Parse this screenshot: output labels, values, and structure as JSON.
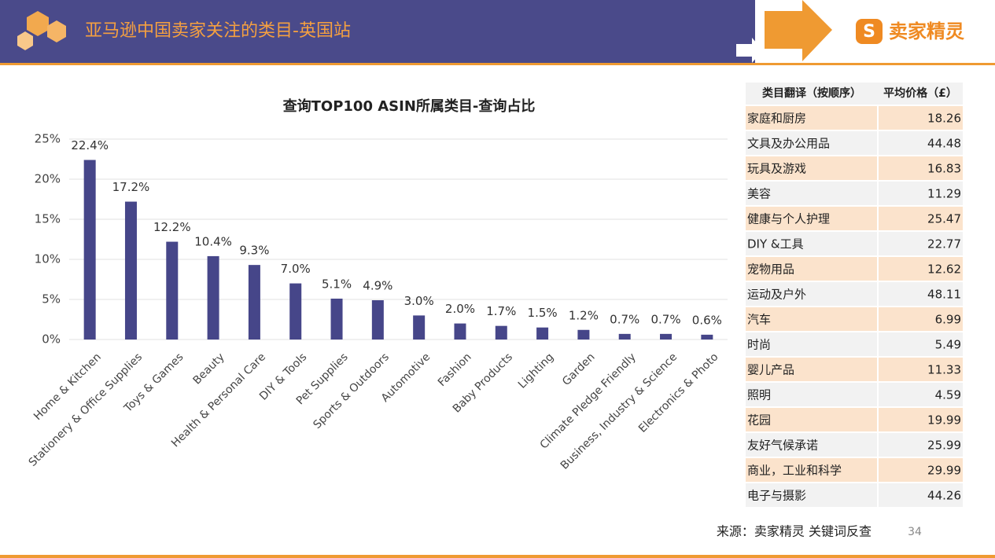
{
  "header": {
    "title": "亚马逊中国卖家关注的类目-英国站",
    "logo": "卖家精灵"
  },
  "chart_data": {
    "type": "bar",
    "title": "查询TOP100 ASIN所属类目-查询占比",
    "categories": [
      "Home & Kitchen",
      "Stationery & Office Supplies",
      "Toys & Games",
      "Beauty",
      "Health & Personal Care",
      "DIY & Tools",
      "Pet Supplies",
      "Sports & Outdoors",
      "Automotive",
      "Fashion",
      "Baby Products",
      "Lighting",
      "Garden",
      "Climate Pledge Friendly",
      "Business, Industry & Science",
      "Electronics & Photo"
    ],
    "values": [
      22.4,
      17.2,
      12.2,
      10.4,
      9.3,
      7.0,
      5.1,
      4.9,
      3.0,
      2.0,
      1.7,
      1.5,
      1.2,
      0.7,
      0.7,
      0.6
    ],
    "value_labels": [
      "22.4%",
      "17.2%",
      "12.2%",
      "10.4%",
      "9.3%",
      "7.0%",
      "5.1%",
      "4.9%",
      "3.0%",
      "2.0%",
      "1.7%",
      "1.5%",
      "1.2%",
      "0.7%",
      "0.7%",
      "0.6%"
    ],
    "color": "#464689",
    "ylim": [
      0,
      25
    ],
    "yticks": [
      {
        "value": 0,
        "label": "0%"
      },
      {
        "value": 5,
        "label": "5%"
      },
      {
        "value": 10,
        "label": "10%"
      },
      {
        "value": 15,
        "label": "15%"
      },
      {
        "value": 20,
        "label": "20%"
      },
      {
        "value": 25,
        "label": "25%"
      }
    ],
    "grid": true
  },
  "table": {
    "columns": [
      "类目翻译（按顺序）",
      "平均价格（£）"
    ],
    "rows": [
      [
        "家庭和厨房",
        18.26
      ],
      [
        "文具及办公用品",
        44.48
      ],
      [
        "玩具及游戏",
        16.83
      ],
      [
        "美容",
        11.29
      ],
      [
        "健康与个人护理",
        25.47
      ],
      [
        "DIY &工具",
        22.77
      ],
      [
        "宠物用品",
        12.62
      ],
      [
        "运动及户外",
        48.11
      ],
      [
        "汽车",
        6.99
      ],
      [
        "时尚",
        5.49
      ],
      [
        "婴儿产品",
        11.33
      ],
      [
        "照明",
        4.59
      ],
      [
        "花园",
        19.99
      ],
      [
        "友好气候承诺",
        25.99
      ],
      [
        "商业，工业和科学",
        29.99
      ],
      [
        "电子与摄影",
        44.26
      ]
    ]
  },
  "footer": {
    "source": "来源：卖家精灵 关键词反查",
    "page": "34"
  }
}
